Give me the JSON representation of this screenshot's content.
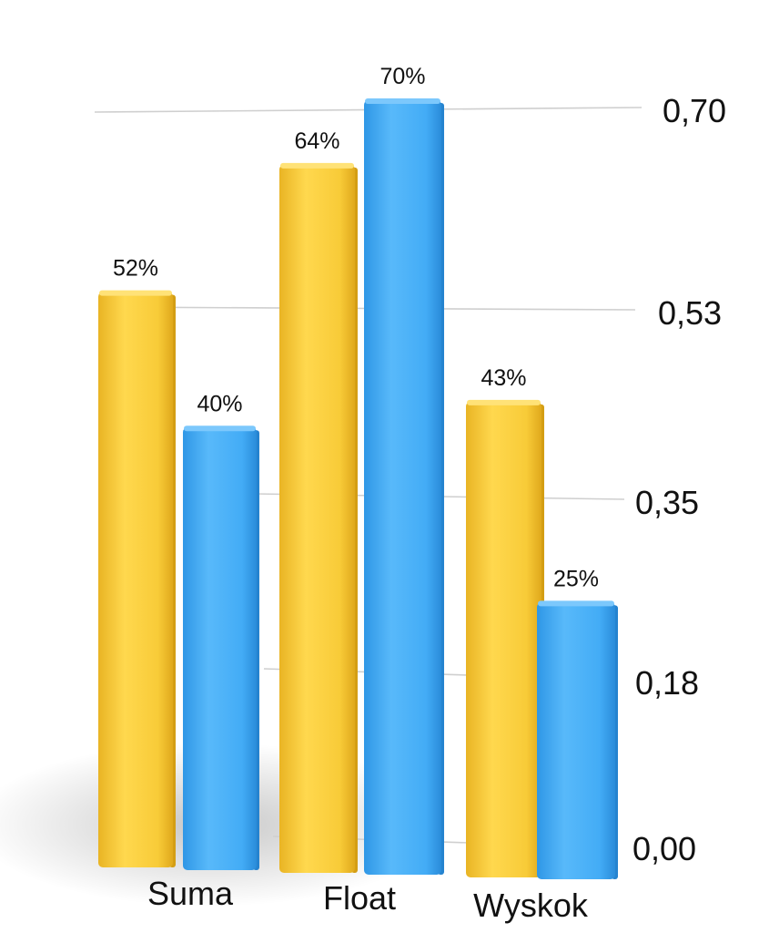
{
  "chart_data": {
    "type": "bar",
    "style": "3d-perspective",
    "categories": [
      "Suma",
      "Float",
      "Wyskok"
    ],
    "series": [
      {
        "color": "#F7C833",
        "values": [
          0.52,
          0.64,
          0.43
        ],
        "labels": [
          "52%",
          "64%",
          "43%"
        ]
      },
      {
        "color": "#3EA9F5",
        "values": [
          0.4,
          0.7,
          0.25
        ],
        "labels": [
          "40%",
          "70%",
          "25%"
        ]
      }
    ],
    "y_ticks": [
      {
        "value": 0.0,
        "label": "0,00"
      },
      {
        "value": 0.175,
        "label": "0,18"
      },
      {
        "value": 0.35,
        "label": "0,35"
      },
      {
        "value": 0.525,
        "label": "0,53"
      },
      {
        "value": 0.7,
        "label": "0,70"
      }
    ],
    "ylim": [
      0,
      0.7
    ],
    "y_axis_side": "right",
    "grid": true,
    "legend": "none"
  }
}
